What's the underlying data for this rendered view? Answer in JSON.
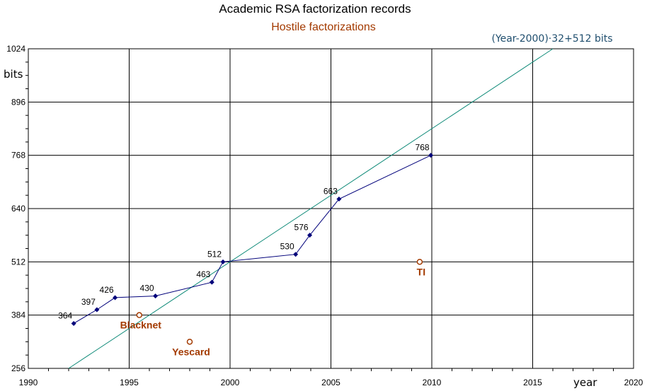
{
  "chart_data": {
    "type": "line",
    "title": "Academic RSA factorization records",
    "subtitle": "Hostile factorizations",
    "xlabel": "year",
    "ylabel": "bits",
    "xlim": [
      1990,
      2020
    ],
    "ylim": [
      256,
      1024
    ],
    "x_ticks": [
      1990,
      1995,
      2000,
      2005,
      2010,
      2015,
      2020
    ],
    "y_ticks": [
      256,
      384,
      512,
      640,
      768,
      896,
      1024
    ],
    "grid": true,
    "series": [
      {
        "color": "#00007a",
        "points": [
          {
            "x": 1992.25,
            "y": 364,
            "label": "364"
          },
          {
            "x": 1993.4,
            "y": 397,
            "label": "397"
          },
          {
            "x": 1994.3,
            "y": 426,
            "label": "426"
          },
          {
            "x": 1996.3,
            "y": 430,
            "label": "430"
          },
          {
            "x": 1999.1,
            "y": 463,
            "label": "463"
          },
          {
            "x": 1999.65,
            "y": 512,
            "label": "512"
          },
          {
            "x": 2003.25,
            "y": 530,
            "label": "530"
          },
          {
            "x": 2003.95,
            "y": 576,
            "label": "576"
          },
          {
            "x": 2005.4,
            "y": 663,
            "label": "663"
          },
          {
            "x": 2009.95,
            "y": 768,
            "label": "768"
          }
        ]
      }
    ],
    "trend_line": {
      "label": "(Year-2000)·32+512 bits",
      "slope_bits_per_year": 32,
      "base_year": 2000,
      "base_bits": 512,
      "color": "#0e8a78"
    },
    "hostile_points": [
      {
        "x": 1995.5,
        "y": 384,
        "label": "Blacknet"
      },
      {
        "x": 1998.0,
        "y": 320,
        "label": "Yescard"
      },
      {
        "x": 2009.4,
        "y": 512,
        "label": "TI"
      }
    ],
    "colors": {
      "grid": "#000000",
      "hostile": "#a33a00",
      "series": "#00007a",
      "trend": "#0e8a78"
    }
  }
}
